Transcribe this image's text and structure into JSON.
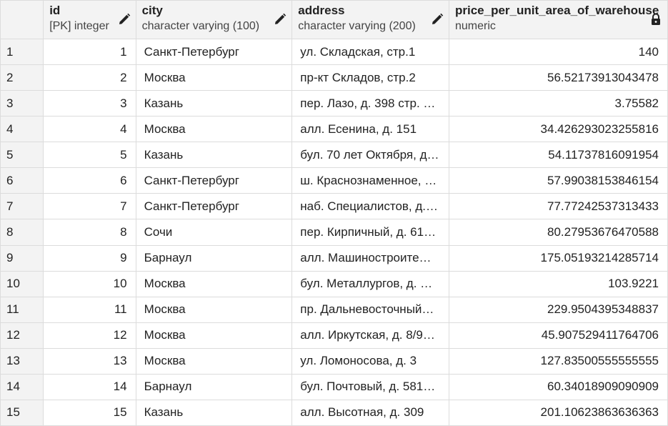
{
  "columns": [
    {
      "name": "id",
      "type": "[PK] integer",
      "icon": "pencil-icon"
    },
    {
      "name": "city",
      "type": "character varying (100)",
      "icon": "pencil-icon"
    },
    {
      "name": "address",
      "type": "character varying (200)",
      "icon": "pencil-icon"
    },
    {
      "name": "price_per_unit_area_of_warehouse",
      "type": "numeric",
      "icon": "lock-icon"
    }
  ],
  "rows": [
    {
      "n": "1",
      "id": "1",
      "city": "Санкт-Петербург",
      "address": "ул. Складская, стр.1",
      "price": "140"
    },
    {
      "n": "2",
      "id": "2",
      "city": "Москва",
      "address": "пр-кт Складов, стр.2",
      "price": "56.52173913043478"
    },
    {
      "n": "3",
      "id": "3",
      "city": "Казань",
      "address": "пер. Лазо, д. 398 стр. …",
      "price": "3.75582"
    },
    {
      "n": "4",
      "id": "4",
      "city": "Москва",
      "address": "алл. Есенина, д. 151",
      "price": "34.426293023255816"
    },
    {
      "n": "5",
      "id": "5",
      "city": "Казань",
      "address": "бул. 70 лет Октября, д…",
      "price": "54.11737816091954"
    },
    {
      "n": "6",
      "id": "6",
      "city": "Санкт-Петербург",
      "address": "ш. Краснознаменное, …",
      "price": "57.99038153846154"
    },
    {
      "n": "7",
      "id": "7",
      "city": "Санкт-Петербург",
      "address": "наб. Специалистов, д.…",
      "price": "77.77242537313433"
    },
    {
      "n": "8",
      "id": "8",
      "city": "Сочи",
      "address": "пер. Кирпичный, д. 61…",
      "price": "80.27953676470588"
    },
    {
      "n": "9",
      "id": "9",
      "city": "Барнаул",
      "address": "алл. Машиностроите…",
      "price": "175.05193214285714"
    },
    {
      "n": "10",
      "id": "10",
      "city": "Москва",
      "address": "бул. Металлургов, д. …",
      "price": "103.9221"
    },
    {
      "n": "11",
      "id": "11",
      "city": "Москва",
      "address": "пр. Дальневосточный…",
      "price": "229.9504395348837"
    },
    {
      "n": "12",
      "id": "12",
      "city": "Москва",
      "address": "алл. Иркутская, д. 8/9…",
      "price": "45.907529411764706"
    },
    {
      "n": "13",
      "id": "13",
      "city": "Москва",
      "address": "ул. Ломоносова, д. 3",
      "price": "127.83500555555555"
    },
    {
      "n": "14",
      "id": "14",
      "city": "Барнаул",
      "address": "бул. Почтовый, д. 581…",
      "price": "60.34018909090909"
    },
    {
      "n": "15",
      "id": "15",
      "city": "Казань",
      "address": "алл. Высотная, д. 309",
      "price": "201.10623863636363"
    }
  ]
}
